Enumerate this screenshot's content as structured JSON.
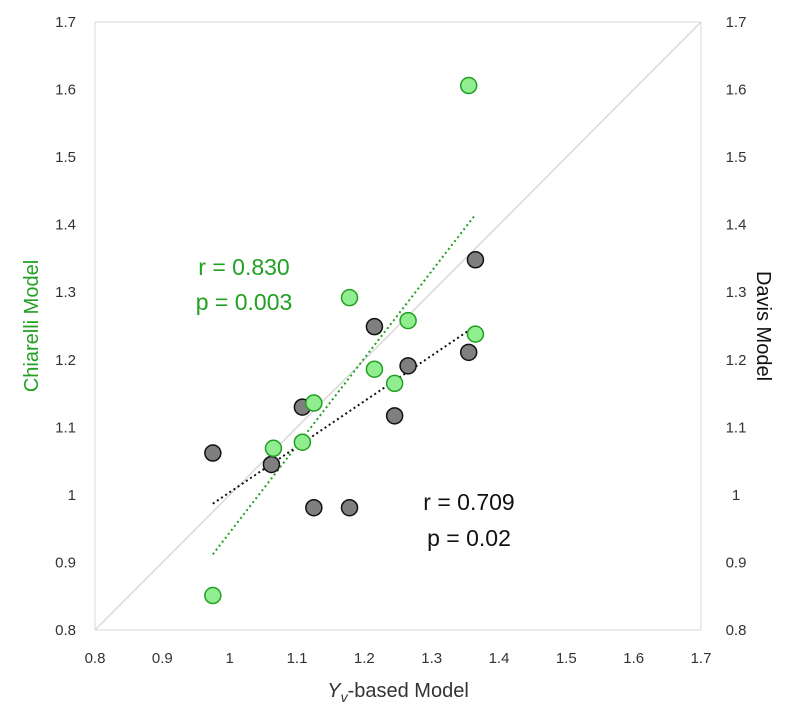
{
  "chart_data": {
    "type": "scatter",
    "xlabel_main": "Y",
    "xlabel_sub": "v",
    "xlabel_rest": "-based Model",
    "ylabel_left": "Chiarelli Model",
    "ylabel_right": "Davis Model",
    "xlim": [
      0.8,
      1.7
    ],
    "ylim": [
      0.8,
      1.7
    ],
    "x_ticks": [
      "0.8",
      "0.9",
      "1",
      "1.1",
      "1.2",
      "1.3",
      "1.4",
      "1.5",
      "1.6",
      "1.7"
    ],
    "y_ticks": [
      "0.8",
      "0.9",
      "1",
      "1.1",
      "1.2",
      "1.3",
      "1.4",
      "1.5",
      "1.6",
      "1.7"
    ],
    "grid": false,
    "identity_line": true,
    "series": [
      {
        "name": "Chiarelli Model",
        "color": "#90ee90",
        "edge_color": "#22a022",
        "trend_color": "#22a022",
        "x": [
          0.975,
          1.065,
          1.108,
          1.125,
          1.178,
          1.215,
          1.245,
          1.265,
          1.355,
          1.365
        ],
        "y": [
          0.851,
          1.069,
          1.078,
          1.136,
          1.292,
          1.186,
          1.165,
          1.258,
          1.606,
          1.238
        ],
        "trend": {
          "x": [
            0.975,
            1.365
          ],
          "y": [
            0.912,
            1.415
          ]
        },
        "annotation": {
          "r": "r = 0.830",
          "p": "p = 0.003"
        }
      },
      {
        "name": "Davis Model",
        "color": "#7f7f7f",
        "edge_color": "#111111",
        "trend_color": "#111111",
        "x": [
          0.975,
          1.062,
          1.108,
          1.125,
          1.178,
          1.215,
          1.245,
          1.265,
          1.355,
          1.365
        ],
        "y": [
          1.062,
          1.045,
          1.13,
          0.981,
          0.981,
          1.249,
          1.117,
          1.191,
          1.211,
          1.348
        ],
        "trend": {
          "x": [
            0.975,
            1.365
          ],
          "y": [
            0.987,
            1.25
          ]
        },
        "annotation": {
          "r": "r = 0.709",
          "p": "p = 0.02"
        }
      }
    ]
  }
}
